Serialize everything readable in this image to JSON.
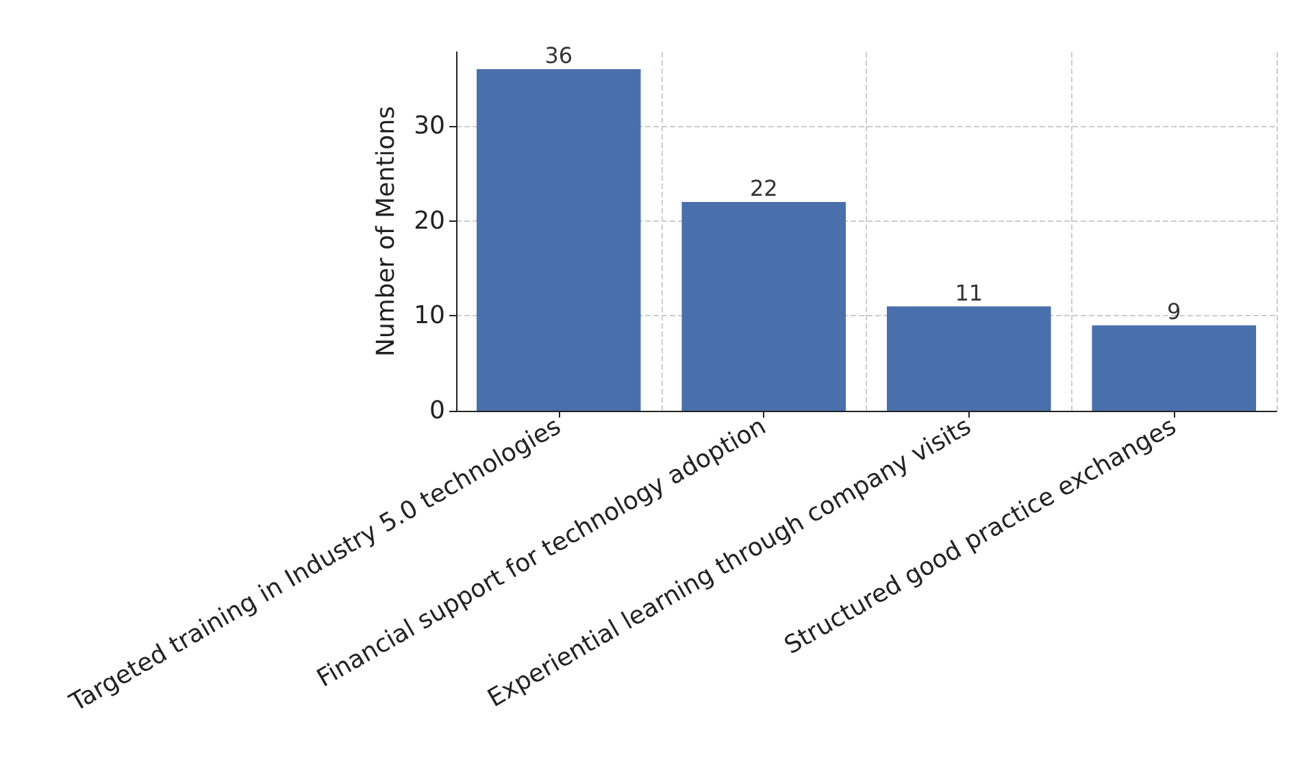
{
  "chart_data": {
    "type": "bar",
    "ylabel": "Number of Mentions",
    "categories": [
      "Targeted training in Industry 5.0 technologies",
      "Financial support for technology adoption",
      "Experiential learning through company visits",
      "Structured good practice exchanges"
    ],
    "values": [
      36,
      22,
      11,
      9
    ],
    "color": "#4a6fad",
    "ylim": [
      0,
      37.8
    ],
    "yticks": [
      0,
      10,
      20,
      30
    ],
    "grid": true,
    "data_labels": true
  }
}
